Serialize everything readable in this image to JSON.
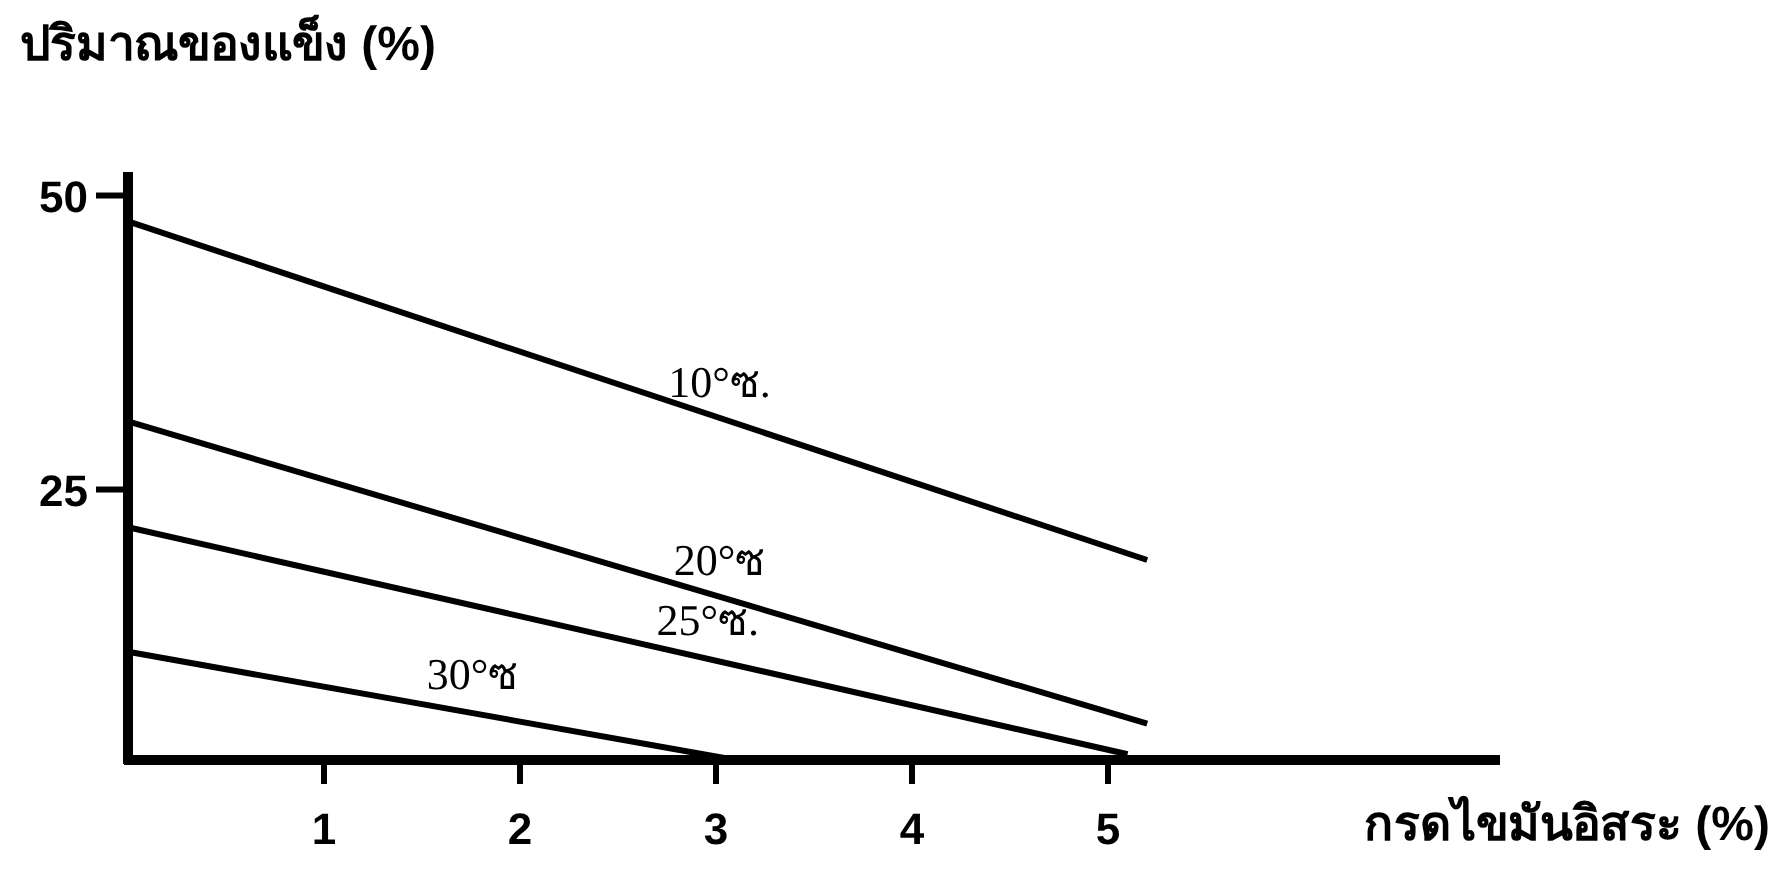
{
  "chart_data": {
    "type": "line",
    "title": "ปริมาณของแข็ง (%)",
    "xlabel": "กรดไขมันอิสระ (%)",
    "xlim": [
      0,
      7
    ],
    "ylim": [
      2,
      52
    ],
    "xticks": [
      1,
      2,
      3,
      4,
      5
    ],
    "yticks": [
      25,
      50
    ],
    "grid": false,
    "legend": false,
    "marker": "none",
    "line_style": "solid",
    "series": [
      {
        "name": "10°ซ.",
        "color": "#000000",
        "x": [
          0,
          5.2
        ],
        "values": [
          47.8,
          19.0
        ]
      },
      {
        "name": "20°ซ",
        "color": "#000000",
        "x": [
          0,
          5.2
        ],
        "values": [
          30.8,
          5.1
        ]
      },
      {
        "name": "25°ซ.",
        "color": "#000000",
        "x": [
          0,
          5.1
        ],
        "values": [
          21.8,
          2.5
        ]
      },
      {
        "name": "30°ซ",
        "color": "#000000",
        "x": [
          0,
          3.1
        ],
        "values": [
          11.2,
          2.0
        ]
      }
    ]
  }
}
